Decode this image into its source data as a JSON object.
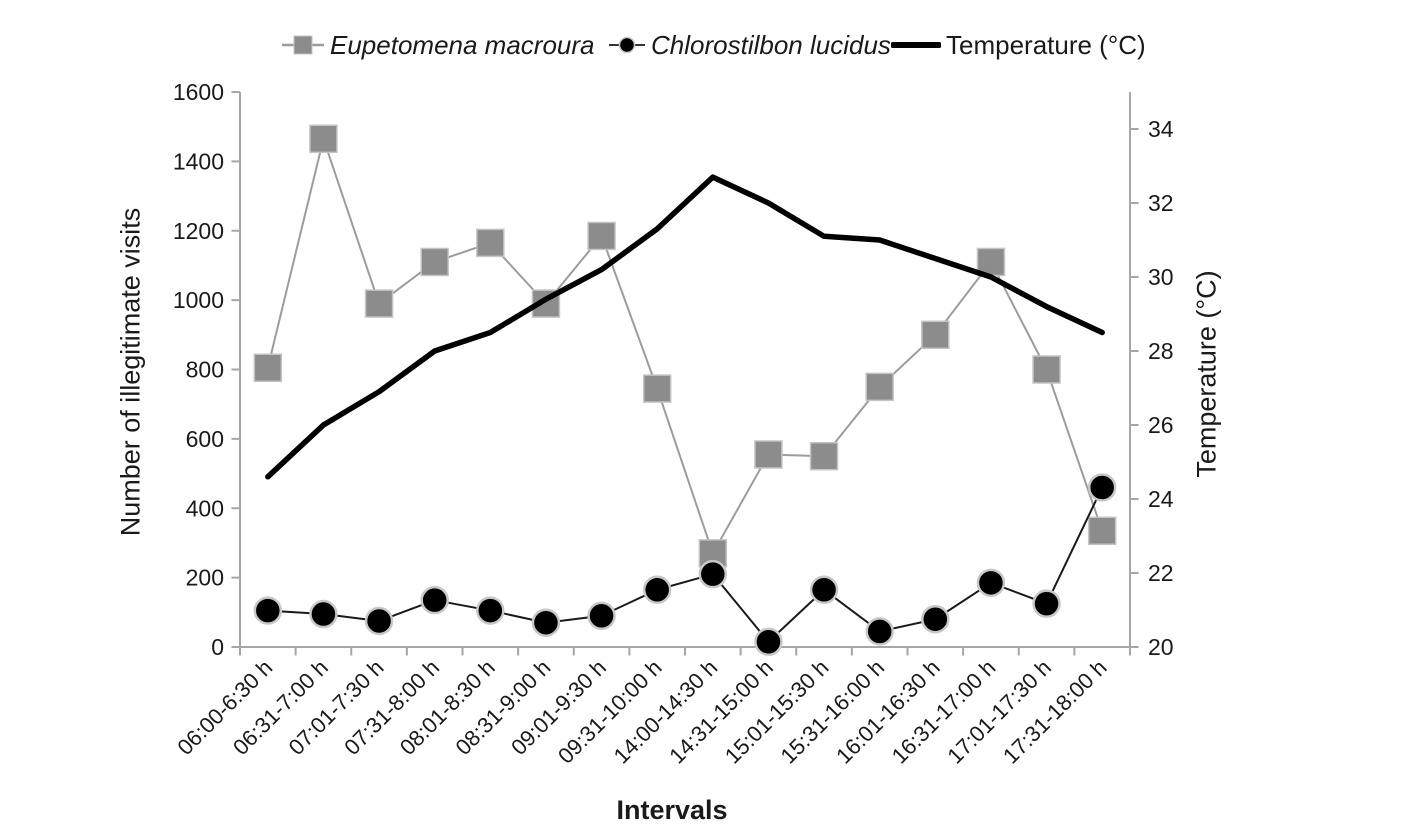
{
  "chart_data": {
    "type": "line",
    "title": "",
    "categories": [
      "06:00-6:30 h",
      "06:31-7:00 h",
      "07:01-7:30 h",
      "07:31-8:00 h",
      "08:01-8:30 h",
      "08:31-9:00 h",
      "09:01-9:30 h",
      "09:31-10:00 h",
      "14:00-14:30 h",
      "14:31-15:00 h",
      "15:01-15:30 h",
      "15:31-16:00 h",
      "16:01-16:30 h",
      "16:31-17:00 h",
      "17:01-17:30 h",
      "17:31-18:00 h"
    ],
    "series": [
      {
        "name": "Eupetomena macroura",
        "axis": "left",
        "marker": "square",
        "marker_color": "#8c8c8c",
        "marker_stroke": "#c4c4c4",
        "line_color": "#9c9c9c",
        "line_width": 2,
        "values": [
          805,
          1465,
          990,
          1110,
          1165,
          990,
          1185,
          745,
          270,
          555,
          550,
          750,
          900,
          1110,
          800,
          335
        ]
      },
      {
        "name": "Chlorostilbon lucidus",
        "axis": "left",
        "marker": "circle",
        "marker_color": "#000000",
        "marker_stroke": "#c8c8c8",
        "line_color": "#1a1a1a",
        "line_width": 2,
        "values": [
          105,
          95,
          75,
          135,
          105,
          70,
          90,
          165,
          210,
          15,
          165,
          45,
          80,
          185,
          125,
          460
        ]
      },
      {
        "name": "Temperature (°C)",
        "axis": "right",
        "marker": "none",
        "line_color": "#000000",
        "line_width": 5.5,
        "values": [
          24.6,
          26.0,
          26.9,
          28.0,
          28.5,
          29.4,
          30.2,
          31.3,
          32.7,
          32.0,
          31.1,
          31.0,
          30.5,
          30.0,
          29.2,
          28.5
        ]
      }
    ],
    "left_axis": {
      "label": "Number of illegitimate visits",
      "min": 0,
      "max": 1600,
      "ticks": [
        0,
        200,
        400,
        600,
        800,
        1000,
        1200,
        1400,
        1600
      ]
    },
    "right_axis": {
      "label": "Temperature (°C)",
      "min": 20,
      "max": 35,
      "ticks": [
        20,
        22,
        24,
        26,
        28,
        30,
        32,
        34
      ]
    },
    "x_axis": {
      "label": "Intervals"
    },
    "legend_position": "top",
    "grid": false,
    "axis_color": "#a6a6a6",
    "text_color": "#1a1a1a"
  }
}
